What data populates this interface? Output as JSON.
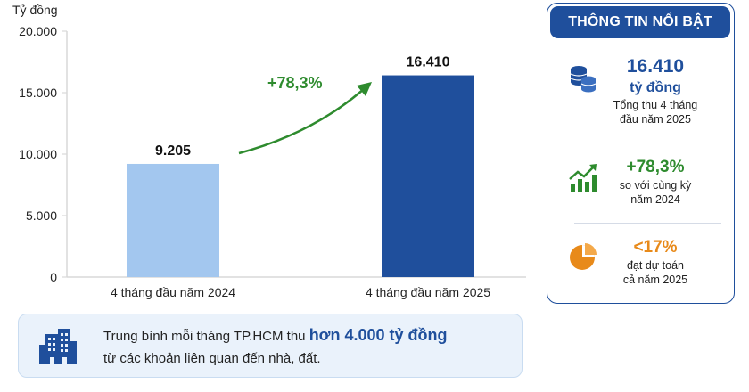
{
  "chart_data": {
    "type": "bar",
    "ylabel": "Tỷ đồng",
    "ylim": [
      0,
      20000
    ],
    "yticks": [
      0,
      5000,
      10000,
      15000,
      20000
    ],
    "ytick_labels": [
      "0",
      "5.000",
      "10.000",
      "15.000",
      "20.000"
    ],
    "categories": [
      "4 tháng đầu năm 2024",
      "4 tháng đầu năm 2025"
    ],
    "values": [
      9205,
      16410
    ],
    "value_labels": [
      "9.205",
      "16.410"
    ],
    "colors": [
      "#a3c7ef",
      "#1f4f9c"
    ],
    "annotation": "+78,3%",
    "grid": false
  },
  "panel": {
    "title": "THÔNG TIN NỔI BẬT",
    "items": [
      {
        "icon": "coins-icon",
        "value": "16.410",
        "unit": "tỷ đồng",
        "text1": "Tổng thu 4 tháng",
        "text2": "đầu năm 2025"
      },
      {
        "icon": "growth-chart-icon",
        "value": "+78,3%",
        "text1": "so với cùng kỳ",
        "text2": "năm 2024"
      },
      {
        "icon": "pie-chart-icon",
        "value": "<17%",
        "text1": "đạt dự toán",
        "text2": "cả năm 2025"
      }
    ]
  },
  "note": {
    "icon": "buildings-icon",
    "prefix": "Trung bình mỗi tháng TP.HCM thu ",
    "highlight": "hơn 4.000 tỷ đồng",
    "line2": "từ các khoản liên quan đến nhà, đất."
  },
  "colors": {
    "accent": "#1f4f9c",
    "green": "#2e8b2e",
    "orange": "#e88a1a",
    "light_bar": "#a3c7ef"
  }
}
